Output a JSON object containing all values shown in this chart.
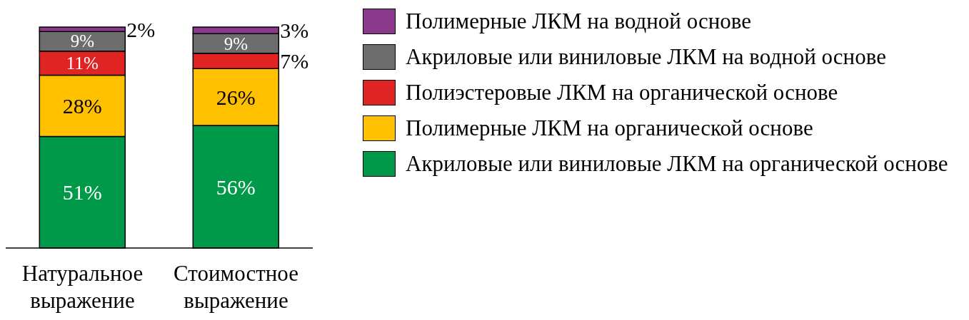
{
  "chart_data": {
    "type": "bar",
    "stacked": true,
    "categories": [
      "Натуральное выражение",
      "Стоимостное выражение"
    ],
    "series": [
      {
        "name": "Акриловые или виниловые ЛКМ на органической основе",
        "color": "#00994a",
        "values": [
          51,
          56
        ],
        "value_labels": [
          "51%",
          "56%"
        ]
      },
      {
        "name": "Полимерные ЛКМ на органической основе",
        "color": "#ffc000",
        "values": [
          28,
          26
        ],
        "value_labels": [
          "28%",
          "26%"
        ]
      },
      {
        "name": "Полиэстеровые ЛКМ на органической основе",
        "color": "#e02424",
        "values": [
          11,
          7
        ],
        "value_labels": [
          "11%",
          "7%"
        ]
      },
      {
        "name": "Акриловые или виниловые ЛКМ на водной основе",
        "color": "#6d6d6d",
        "values": [
          9,
          9
        ],
        "value_labels": [
          "9%",
          "9%"
        ]
      },
      {
        "name": "Полимерные ЛКМ на водной основе",
        "color": "#8b3a8b",
        "values": [
          2,
          3
        ],
        "value_labels": [
          "2%",
          "3%"
        ]
      }
    ],
    "legend": "right",
    "grid": false
  }
}
